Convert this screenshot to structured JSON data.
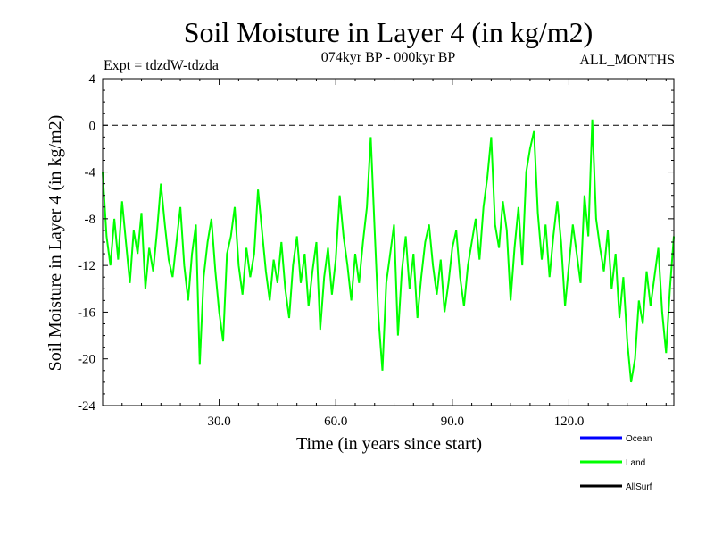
{
  "chart_data": {
    "type": "line",
    "title": "Soil Moisture in Layer 4 (in kg/m2)",
    "subtitle_left": "Expt = tdzdW-tdzda",
    "subtitle_center": "074kyr BP - 000kyr BP",
    "subtitle_right": "ALL_MONTHS",
    "xlabel": "Time (in years since start)",
    "ylabel": "Soil Moisture in Layer 4 (in kg/m2)",
    "xlim": [
      0,
      147
    ],
    "ylim": [
      -24,
      4
    ],
    "xticks": [
      30,
      60,
      90,
      120
    ],
    "xtick_labels": [
      "30.0",
      "60.0",
      "90.0",
      "120.0"
    ],
    "yticks": [
      4,
      0,
      -4,
      -8,
      -12,
      -16,
      -20,
      -24
    ],
    "ytick_labels": [
      "4",
      "0",
      "-4",
      "-8",
      "-12",
      "-16",
      "-20",
      "-24"
    ],
    "reference_line": 0,
    "legend": [
      {
        "name": "Ocean",
        "color": "#0000ff"
      },
      {
        "name": "Land",
        "color": "#00ff00"
      },
      {
        "name": "AllSurf",
        "color": "#000000"
      }
    ],
    "series": [
      {
        "name": "Land",
        "color": "#00ff00",
        "x_start": 0,
        "x_step": 1,
        "values": [
          -4.0,
          -9.5,
          -12.0,
          -8.0,
          -11.5,
          -6.5,
          -10.0,
          -13.5,
          -9.0,
          -11.0,
          -7.5,
          -14.0,
          -10.5,
          -12.5,
          -9.0,
          -5.0,
          -8.5,
          -11.5,
          -13.0,
          -10.0,
          -7.0,
          -12.0,
          -15.0,
          -11.0,
          -8.5,
          -20.5,
          -13.0,
          -10.0,
          -8.0,
          -12.5,
          -16.0,
          -18.5,
          -11.0,
          -9.5,
          -7.0,
          -12.0,
          -14.5,
          -10.5,
          -13.0,
          -11.0,
          -5.5,
          -9.0,
          -12.5,
          -15.0,
          -11.5,
          -13.5,
          -10.0,
          -14.0,
          -16.5,
          -12.0,
          -9.5,
          -13.5,
          -11.0,
          -15.5,
          -12.5,
          -10.0,
          -17.5,
          -13.0,
          -10.5,
          -14.5,
          -11.5,
          -6.0,
          -9.5,
          -12.0,
          -15.0,
          -11.0,
          -13.5,
          -10.0,
          -7.0,
          -1.0,
          -9.0,
          -16.5,
          -21.0,
          -13.5,
          -11.0,
          -8.5,
          -18.0,
          -12.5,
          -9.5,
          -14.0,
          -11.0,
          -16.5,
          -13.0,
          -10.0,
          -8.5,
          -12.0,
          -14.5,
          -11.5,
          -16.0,
          -13.5,
          -10.5,
          -9.0,
          -13.0,
          -15.5,
          -12.0,
          -10.0,
          -8.0,
          -11.5,
          -7.0,
          -4.5,
          -1.0,
          -8.5,
          -10.5,
          -6.5,
          -9.0,
          -15.0,
          -10.5,
          -7.0,
          -12.0,
          -4.0,
          -2.0,
          -0.5,
          -7.5,
          -11.5,
          -8.5,
          -13.0,
          -9.5,
          -6.5,
          -10.0,
          -15.5,
          -12.0,
          -8.5,
          -11.0,
          -13.5,
          -6.0,
          -9.5,
          0.5,
          -8.0,
          -10.5,
          -12.5,
          -9.0,
          -14.0,
          -11.0,
          -16.5,
          -13.0,
          -18.5,
          -22.0,
          -20.0,
          -15.0,
          -17.0,
          -12.5,
          -15.5,
          -13.0,
          -10.5,
          -16.0,
          -19.5,
          -14.0,
          -9.5
        ]
      },
      {
        "name": "Ocean",
        "color": "#0000ff",
        "values": []
      },
      {
        "name": "AllSurf",
        "color": "#000000",
        "values": []
      }
    ]
  }
}
